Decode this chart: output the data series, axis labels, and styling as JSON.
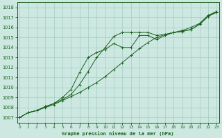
{
  "title": "Graphe pression niveau de la mer (hPa)",
  "bg_color": "#cce8e0",
  "grid_color": "#aacfc8",
  "line_color": "#1a6020",
  "ylim": [
    1006.5,
    1018.5
  ],
  "xlim": [
    -0.3,
    23.3
  ],
  "yticks": [
    1007,
    1008,
    1009,
    1010,
    1011,
    1012,
    1013,
    1014,
    1015,
    1016,
    1017,
    1018
  ],
  "xticks": [
    0,
    1,
    2,
    3,
    4,
    5,
    6,
    7,
    8,
    9,
    10,
    11,
    12,
    13,
    14,
    15,
    16,
    17,
    18,
    19,
    20,
    21,
    22,
    23
  ],
  "line1_x": [
    0,
    1,
    2,
    3,
    4,
    5,
    6,
    7,
    8,
    9,
    10,
    11,
    12,
    13,
    14,
    15,
    16,
    17,
    18,
    19,
    20,
    21,
    22,
    23
  ],
  "line1_y": [
    1007.0,
    1007.5,
    1007.7,
    1008.0,
    1008.3,
    1008.7,
    1009.1,
    1009.5,
    1010.0,
    1010.5,
    1011.1,
    1011.8,
    1012.5,
    1013.2,
    1013.9,
    1014.5,
    1015.0,
    1015.3,
    1015.5,
    1015.6,
    1015.8,
    1016.3,
    1017.1,
    1017.5
  ],
  "line2_x": [
    0,
    1,
    2,
    3,
    4,
    5,
    6,
    7,
    8,
    9,
    10,
    11,
    12,
    13,
    14,
    15,
    16,
    17,
    18,
    19,
    20,
    21,
    22,
    23
  ],
  "line2_y": [
    1007.0,
    1007.5,
    1007.7,
    1008.1,
    1008.4,
    1008.8,
    1009.3,
    1010.3,
    1011.6,
    1013.0,
    1014.0,
    1015.1,
    1015.5,
    1015.5,
    1015.5,
    1015.5,
    1015.2,
    1015.3,
    1015.5,
    1015.6,
    1015.8,
    1016.3,
    1017.1,
    1017.6
  ],
  "line3_x": [
    0,
    1,
    2,
    3,
    4,
    5,
    6,
    7,
    8,
    9,
    10,
    11,
    12,
    13,
    14,
    15,
    16,
    17,
    18,
    19,
    20,
    21,
    22,
    23
  ],
  "line3_y": [
    1007.0,
    1007.5,
    1007.7,
    1008.1,
    1008.4,
    1009.0,
    1009.8,
    1011.5,
    1013.0,
    1013.5,
    1013.8,
    1014.4,
    1014.0,
    1014.0,
    1015.2,
    1015.2,
    1014.8,
    1015.2,
    1015.5,
    1015.7,
    1016.0,
    1016.4,
    1017.2,
    1017.6
  ]
}
